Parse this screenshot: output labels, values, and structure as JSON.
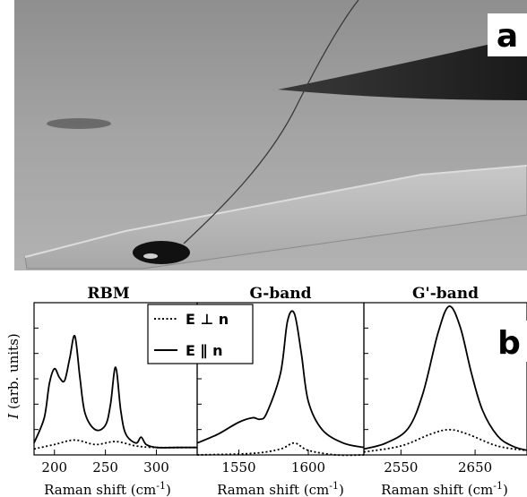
{
  "figure": {
    "panel_a_label": "a",
    "panel_b_label": "b",
    "ylabel_symbol": "I",
    "ylabel_text": "(arb. units)",
    "xlabel_prefix": "Raman shift (cm",
    "xlabel_exp": "-1",
    "xlabel_suffix": ")"
  },
  "legend": {
    "perp_label": "E ⊥ n",
    "par_label": "E ∥ n"
  },
  "colors": {
    "photo_bg": "#9a9a9a",
    "slide": "#bcbcbc",
    "curve": "#000000"
  },
  "chart_data": [
    {
      "type": "line",
      "title": "RBM",
      "xlabel": "Raman shift (cm-1)",
      "ylabel": "I (arb. units)",
      "xlim": [
        180,
        340
      ],
      "ylim": [
        0,
        1
      ],
      "xticks": [
        200,
        250,
        300
      ],
      "xtick_labels": [
        "200",
        "250",
        "300"
      ],
      "series": [
        {
          "name": "E ∥ n",
          "style": "solid",
          "x": [
            180,
            190,
            195,
            200,
            205,
            210,
            215,
            220,
            225,
            230,
            240,
            250,
            255,
            260,
            265,
            270,
            280,
            285,
            290,
            300,
            320,
            340
          ],
          "y": [
            0.08,
            0.25,
            0.48,
            0.58,
            0.52,
            0.5,
            0.65,
            0.8,
            0.52,
            0.28,
            0.17,
            0.2,
            0.34,
            0.59,
            0.3,
            0.14,
            0.08,
            0.12,
            0.07,
            0.05,
            0.05,
            0.05
          ]
        },
        {
          "name": "E ⊥ n",
          "style": "dotted",
          "x": [
            180,
            200,
            220,
            240,
            260,
            280,
            300,
            340
          ],
          "y": [
            0.04,
            0.07,
            0.1,
            0.07,
            0.09,
            0.06,
            0.05,
            0.05
          ]
        }
      ]
    },
    {
      "type": "line",
      "title": "G-band",
      "xlabel": "Raman shift (cm-1)",
      "xlim": [
        1520,
        1640
      ],
      "ylim": [
        0,
        1
      ],
      "xticks": [
        1550,
        1600
      ],
      "xtick_labels": [
        "1550",
        "1600"
      ],
      "series": [
        {
          "name": "E ∥ n",
          "style": "solid",
          "x": [
            1520,
            1535,
            1550,
            1560,
            1565,
            1570,
            1580,
            1585,
            1590,
            1595,
            1600,
            1610,
            1625,
            1640
          ],
          "y": [
            0.08,
            0.14,
            0.22,
            0.25,
            0.24,
            0.28,
            0.55,
            0.9,
            0.95,
            0.68,
            0.36,
            0.17,
            0.08,
            0.05
          ]
        },
        {
          "name": "E ⊥ n",
          "style": "dotted",
          "x": [
            1520,
            1560,
            1580,
            1590,
            1600,
            1620,
            1640
          ],
          "y": [
            0.0,
            0.01,
            0.04,
            0.08,
            0.03,
            0.0,
            0.0
          ]
        }
      ]
    },
    {
      "type": "line",
      "title": "G'-band",
      "xlabel": "Raman shift (cm-1)",
      "xlim": [
        2500,
        2720
      ],
      "ylim": [
        0,
        1
      ],
      "xticks": [
        2550,
        2650
      ],
      "xtick_labels": [
        "2550",
        "2650"
      ],
      "series": [
        {
          "name": "E ∥ n",
          "style": "solid",
          "x": [
            2500,
            2530,
            2560,
            2580,
            2600,
            2615,
            2630,
            2645,
            2660,
            2680,
            2700,
            2720
          ],
          "y": [
            0.04,
            0.08,
            0.18,
            0.42,
            0.82,
            1.0,
            0.86,
            0.55,
            0.3,
            0.13,
            0.06,
            0.03
          ]
        },
        {
          "name": "E ⊥ n",
          "style": "dotted",
          "x": [
            2500,
            2550,
            2590,
            2615,
            2640,
            2680,
            2720
          ],
          "y": [
            0.02,
            0.06,
            0.14,
            0.17,
            0.14,
            0.06,
            0.03
          ]
        }
      ]
    }
  ]
}
